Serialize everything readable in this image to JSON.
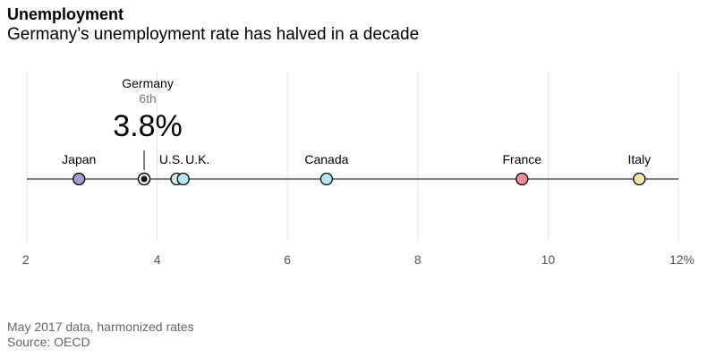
{
  "header": {
    "title": "Unemployment",
    "subtitle": "Germany’s unemployment rate has halved in a decade"
  },
  "highlight": {
    "name": "Germany",
    "rank": "6th",
    "value_label": "3.8%"
  },
  "footer": {
    "note": "May 2017 data, harmonized rates",
    "source": "Source: OECD"
  },
  "chart_data": {
    "type": "scatter",
    "x": [
      2.8,
      3.8,
      4.3,
      4.4,
      6.6,
      9.6,
      11.4
    ],
    "labels": [
      "Japan",
      "Germany",
      "U.S.",
      "U.K.",
      "Canada",
      "France",
      "Italy"
    ],
    "colors": [
      "#a59ad6",
      "#111111",
      "#d2ecdd",
      "#b7e4ef",
      "#b4e6ee",
      "#ef8f9a",
      "#f5e7a6"
    ],
    "xlim": [
      2,
      12
    ],
    "xticks": [
      2,
      4,
      6,
      8,
      10,
      12
    ],
    "xtick_labels": [
      "2",
      "4",
      "6",
      "8",
      "10",
      "12%"
    ],
    "grid": true
  }
}
